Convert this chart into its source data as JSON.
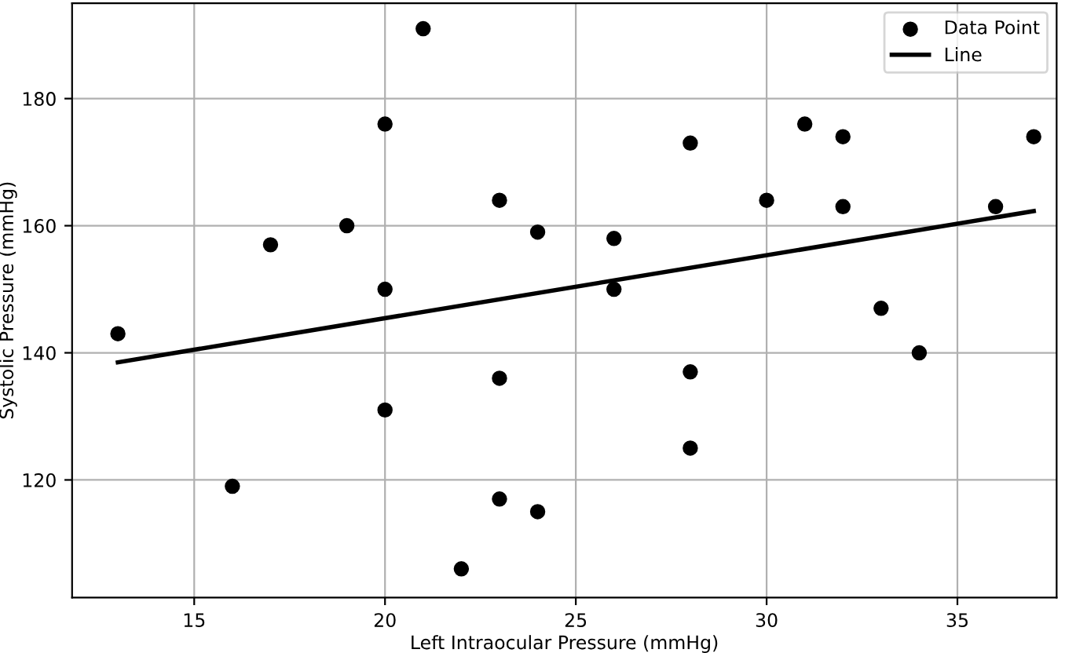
{
  "chart_data": {
    "type": "scatter",
    "xlabel": "Left Intraocular Pressure (mmHg)",
    "ylabel": "Systolic Pressure (mmHg)",
    "xlim": [
      11.8,
      37.6
    ],
    "ylim": [
      101.5,
      195
    ],
    "xticks": [
      15,
      20,
      25,
      30,
      35
    ],
    "yticks": [
      120,
      140,
      160,
      180
    ],
    "grid": true,
    "legend": "upper right",
    "series": [
      {
        "name": "Data Point",
        "marker": "circle",
        "color": "#000000",
        "x": [
          13,
          16,
          17,
          19,
          20,
          20,
          20,
          21,
          22,
          23,
          23,
          23,
          24,
          24,
          26,
          26,
          28,
          28,
          28,
          30,
          31,
          32,
          32,
          33,
          34,
          36,
          37
        ],
        "values": [
          143,
          119,
          157,
          160,
          176,
          150,
          131,
          191,
          106,
          164,
          136,
          117,
          159,
          115,
          158,
          150,
          173,
          137,
          125,
          164,
          176,
          174,
          163,
          147,
          140,
          163,
          174
        ]
      },
      {
        "name": "Line",
        "type": "line",
        "line_style": "solid",
        "color": "#000000",
        "x": [
          13,
          37
        ],
        "values": [
          138.5,
          162.3
        ]
      }
    ]
  }
}
